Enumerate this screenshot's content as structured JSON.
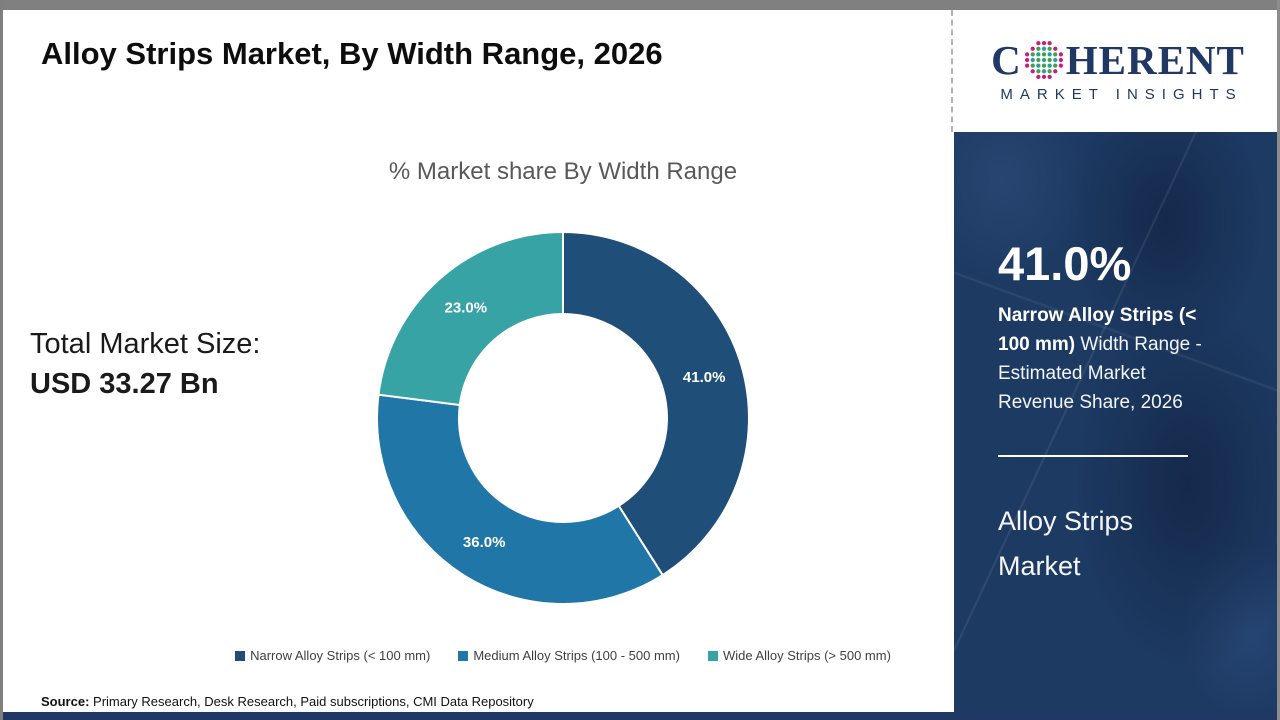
{
  "header": {
    "title": "Alloy Strips Market, By Width Range, 2026"
  },
  "logo": {
    "brand_first_letter": "C",
    "brand_rest": "HERENT",
    "subtitle": "MARKET INSIGHTS",
    "brand_color": "#1f3864"
  },
  "main": {
    "chart_title": "% Market share By Width Range",
    "total_market_size_label": "Total Market Size:",
    "total_market_size_value": "USD 33.27 Bn",
    "source_label": "Source:",
    "source_text": " Primary Research, Desk Research, Paid subscriptions, CMI Data Repository"
  },
  "chart_data": {
    "type": "pie",
    "subtype": "donut",
    "title": "% Market share By Width Range",
    "categories": [
      "Narrow Alloy Strips (< 100 mm)",
      "Medium Alloy Strips (100 - 500 mm)",
      "Wide Alloy Strips (> 500 mm)"
    ],
    "values": [
      41.0,
      36.0,
      23.0
    ],
    "slice_labels": [
      "41.0%",
      "36.0%",
      "23.0%"
    ],
    "colors": [
      "#1f4e79",
      "#2076a7",
      "#38a3a5"
    ],
    "start_angle_deg": 0,
    "clockwise": true,
    "legend_position": "bottom"
  },
  "sidebar": {
    "stat_value": "41.0%",
    "stat_bold": "Narrow Alloy Strips (< 100 mm)",
    "stat_rest": " Width Range - Estimated Market Revenue Share, 2026",
    "market_name_line1": "Alloy Strips",
    "market_name_line2": "Market",
    "background_color": "#1d3a63"
  }
}
